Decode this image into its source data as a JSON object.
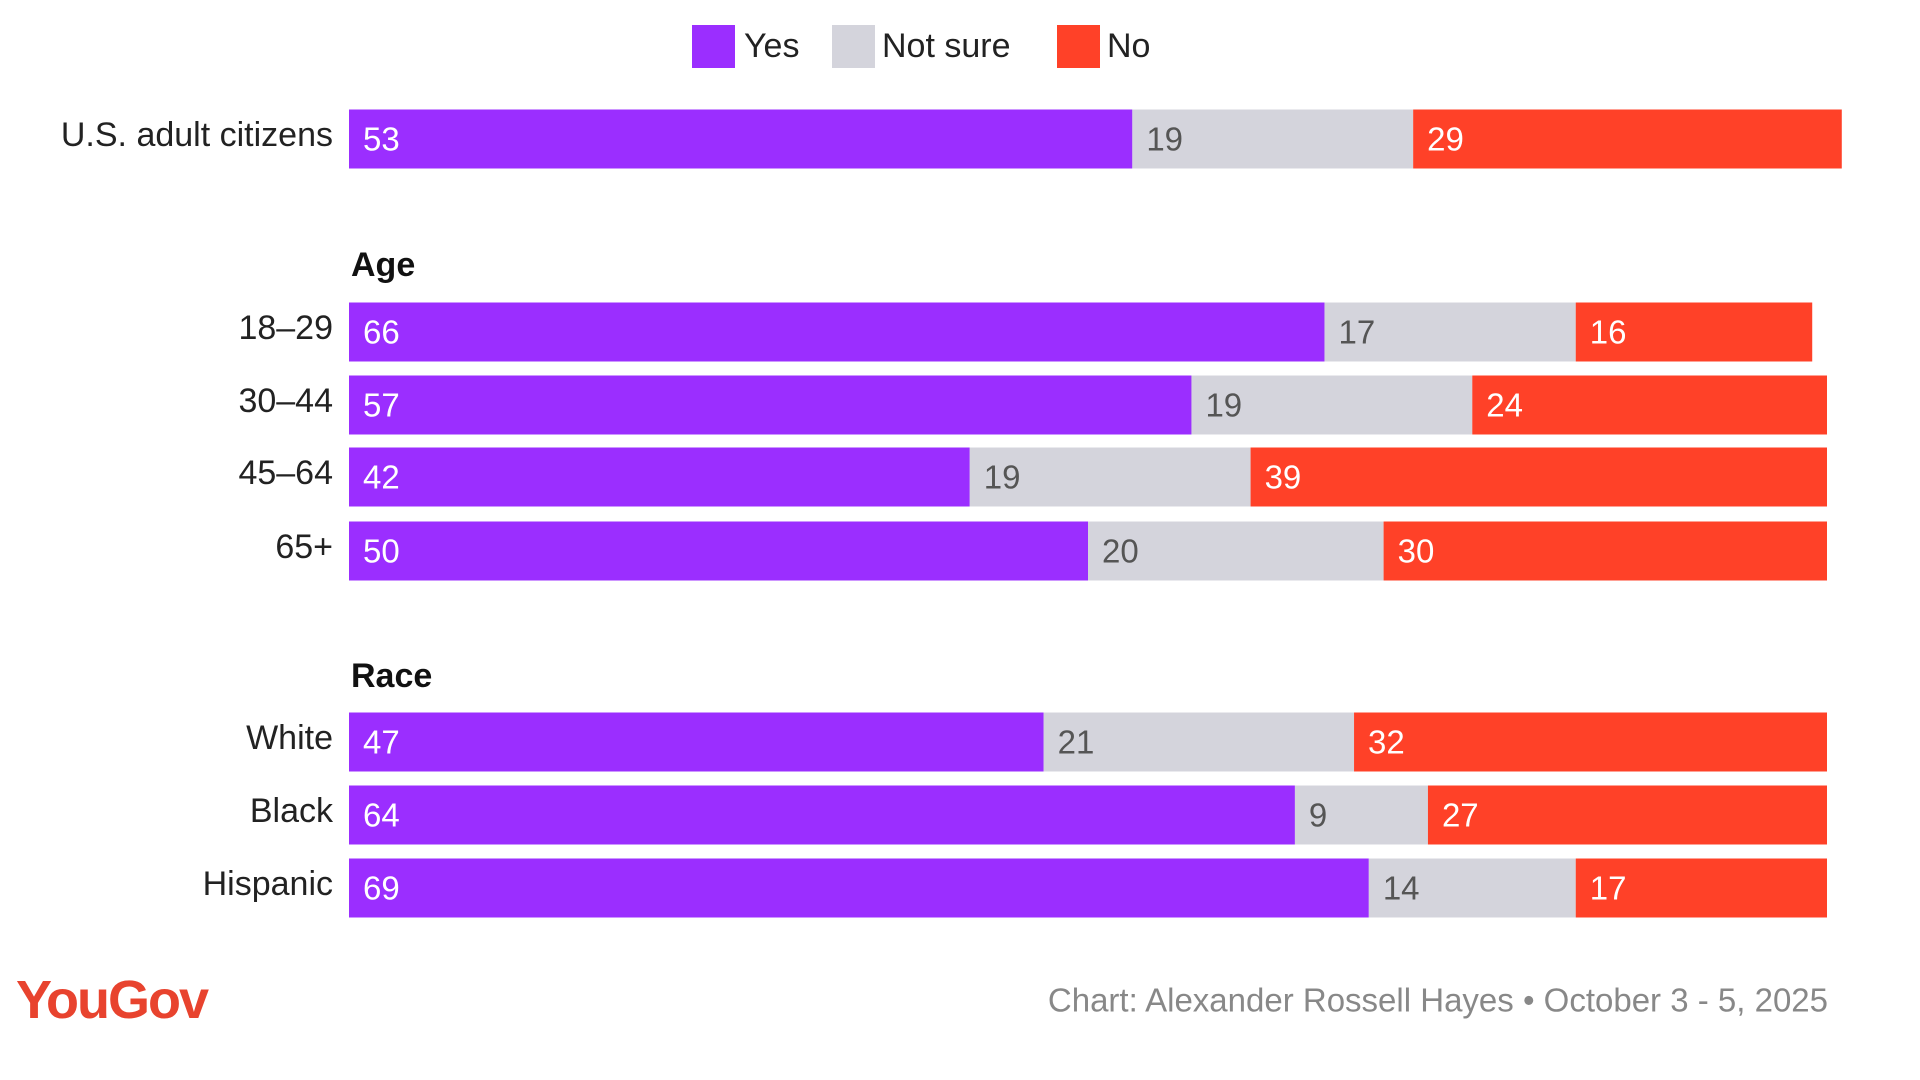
{
  "chart_data": {
    "type": "stacked-bar",
    "orientation": "horizontal",
    "sections": [
      {
        "categories": [
          "U.S. adult citizens"
        ]
      },
      {
        "title": "Age",
        "categories": [
          "18–29",
          "30–44",
          "45–64",
          "65+"
        ]
      },
      {
        "title": "Race",
        "categories": [
          "White",
          "Black",
          "Hispanic"
        ]
      }
    ],
    "series": [
      {
        "name": "Yes",
        "color": "#9b2eff",
        "label_color": "#ffffff",
        "values": [
          53,
          66,
          57,
          42,
          50,
          47,
          64,
          69
        ]
      },
      {
        "name": "Not sure",
        "color": "#d4d4dc",
        "label_color": "#555555",
        "values": [
          19,
          17,
          19,
          19,
          20,
          21,
          9,
          14
        ]
      },
      {
        "name": "No",
        "color": "#ff4128",
        "label_color": "#ffffff",
        "values": [
          29,
          16,
          24,
          39,
          30,
          32,
          27,
          17
        ]
      }
    ],
    "xlim": [
      0,
      100
    ],
    "logo": "YouGov",
    "source": "Chart: Alexander Rossell Hayes • October 3 - 5, 2025"
  }
}
